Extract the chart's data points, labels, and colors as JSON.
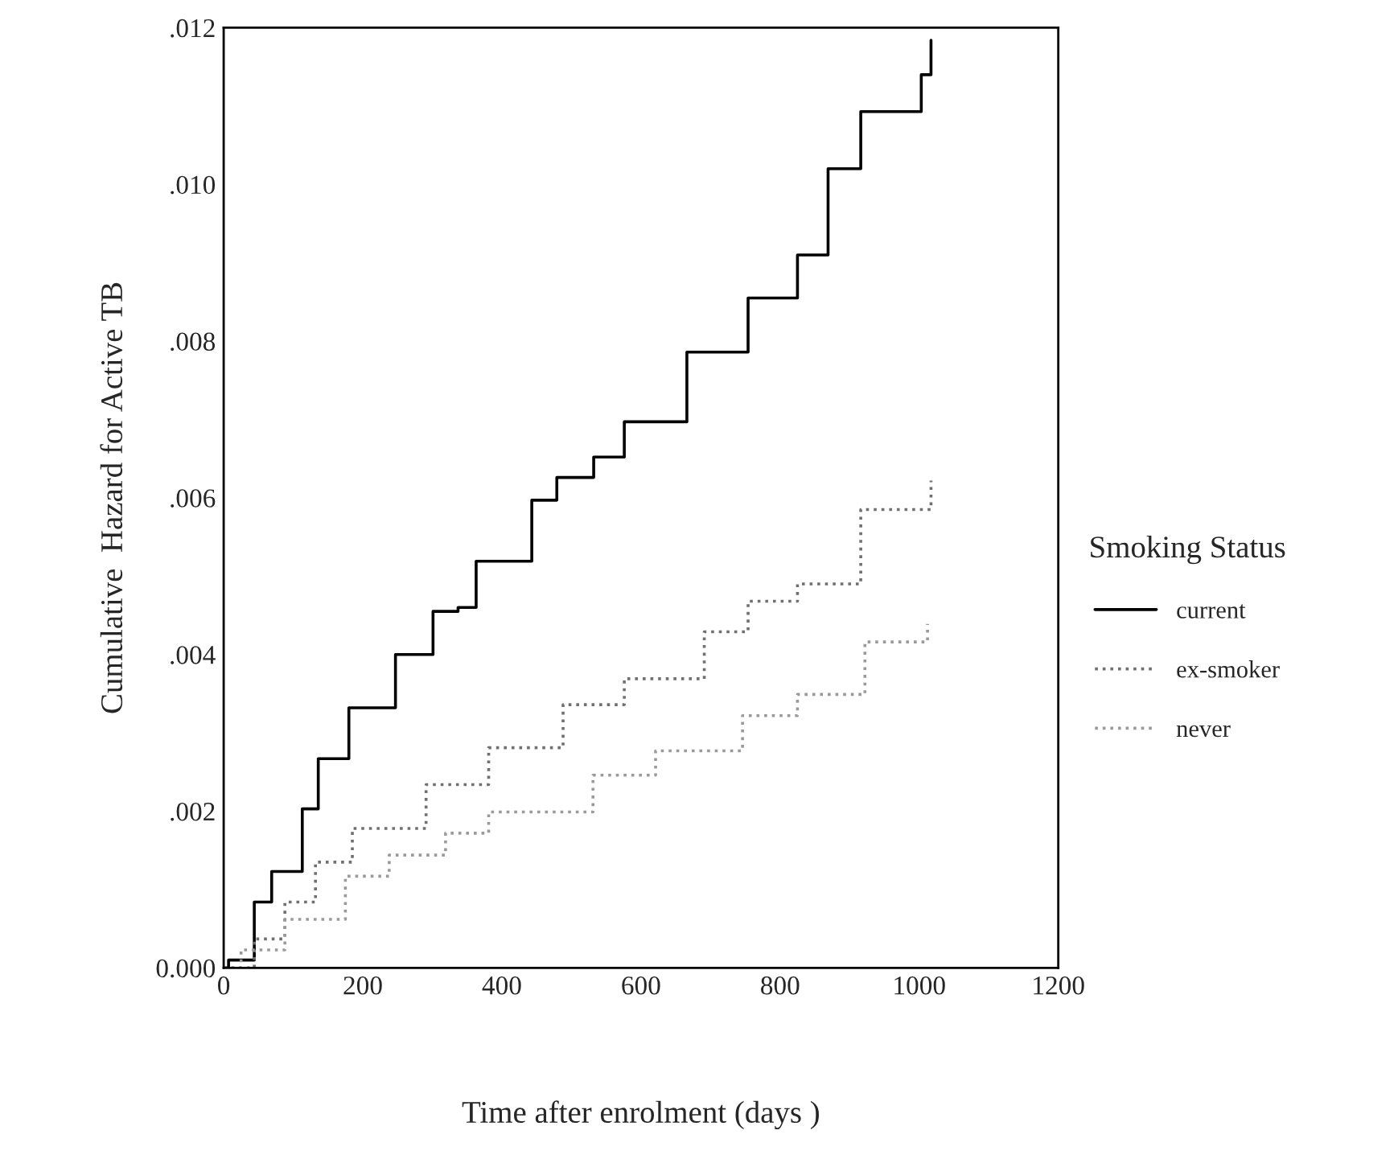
{
  "chart_data": {
    "type": "step",
    "xlabel": "Time after enrolment (days )",
    "ylabel": "Cumulative  Hazard for Active TB",
    "legend_title": "Smoking Status",
    "legend": "right",
    "grid": false,
    "xlim": [
      0,
      1200
    ],
    "xticks": [
      0,
      200,
      400,
      600,
      800,
      1000,
      1200
    ],
    "ylim": [
      0,
      0.012
    ],
    "yticks": [
      {
        "value": 0,
        "label": "0.000"
      },
      {
        "value": 0.002,
        "label": ".002"
      },
      {
        "value": 0.004,
        "label": ".004"
      },
      {
        "value": 0.006,
        "label": ".006"
      },
      {
        "value": 0.008,
        "label": ".008"
      },
      {
        "value": 0.01,
        "label": ".010"
      },
      {
        "value": 0.012,
        "label": ".012"
      }
    ],
    "series": [
      {
        "name": "current",
        "color": "#000000",
        "line_style": "solid",
        "x": [
          0,
          7,
          44,
          69,
          113,
          136,
          180,
          247,
          301,
          337,
          363,
          443,
          479,
          532,
          576,
          666,
          754,
          825,
          869,
          916,
          1003,
          1017
        ],
        "values": [
          0,
          0.0001,
          0.00084,
          0.00123,
          0.00203,
          0.00267,
          0.00332,
          0.004,
          0.00455,
          0.0046,
          0.00519,
          0.00597,
          0.00626,
          0.00652,
          0.00697,
          0.00786,
          0.00855,
          0.0091,
          0.0102,
          0.01093,
          0.0114,
          0.01184
        ]
      },
      {
        "name": "ex-smoker",
        "color": "#707070",
        "line_style": "dotted",
        "x": [
          0,
          44,
          88,
          132,
          185,
          291,
          381,
          488,
          576,
          691,
          754,
          825,
          916,
          1017
        ],
        "values": [
          0,
          0.00037,
          0.00084,
          0.00135,
          0.00178,
          0.00234,
          0.00281,
          0.00336,
          0.00369,
          0.00429,
          0.00468,
          0.0049,
          0.00585,
          0.00622
        ]
      },
      {
        "name": "never",
        "color": "#9a9a9a",
        "line_style": "dotted",
        "x": [
          0,
          25,
          88,
          175,
          238,
          319,
          381,
          531,
          621,
          746,
          825,
          922,
          1012
        ],
        "values": [
          0,
          0.00023,
          0.00062,
          0.00117,
          0.00144,
          0.00172,
          0.00199,
          0.00246,
          0.00277,
          0.00322,
          0.00349,
          0.00416,
          0.00439
        ]
      }
    ]
  }
}
